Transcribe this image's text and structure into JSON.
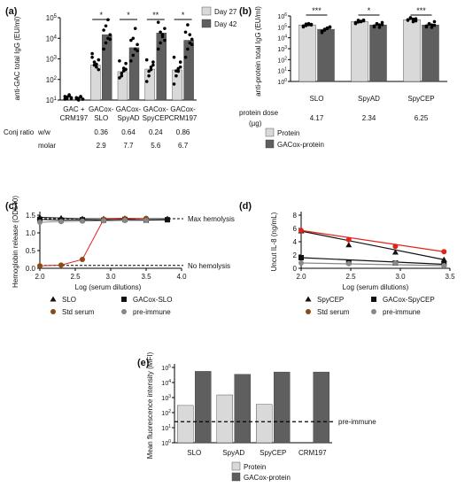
{
  "colors": {
    "light": "#d9d9d9",
    "dark": "#5f5f5f",
    "red": "#e2231a",
    "black": "#111111",
    "grey": "#888888",
    "brown": "#8b4a16"
  },
  "chart_data": [
    {
      "panel": "(a)",
      "type": "bar",
      "scale": "log",
      "ylabel": "anti-GAC total IgG (EU/ml)",
      "ylim_exponents": [
        1,
        5
      ],
      "ytick_exponents": [
        1,
        2,
        3,
        4,
        5
      ],
      "categories": [
        {
          "line1": "GAC +",
          "line2": "CRM197"
        },
        {
          "line1": "GACox-",
          "line2": "SLO"
        },
        {
          "line1": "GACox-",
          "line2": "SpyAD"
        },
        {
          "line1": "GACox-",
          "line2": "SpyCEP"
        },
        {
          "line1": "GACox-",
          "line2": "CRM197"
        }
      ],
      "series": [
        {
          "name": "Day 27",
          "values": [
            14,
            500,
            240,
            320,
            290
          ],
          "points": [
            [
              15,
              12,
              18,
              13,
              11,
              14,
              16,
              12
            ],
            [
              1800,
              700,
              400,
              300,
              1200,
              500,
              550,
              900
            ],
            [
              120,
              200,
              350,
              600,
              800,
              150,
              260,
              310
            ],
            [
              80,
              150,
              300,
              700,
              900,
              250,
              400,
              500
            ],
            [
              60,
              150,
              250,
              700,
              1200,
              260,
              340,
              400
            ]
          ]
        },
        {
          "name": "Day 42",
          "values": [
            12,
            15000,
            3500,
            18000,
            8000
          ],
          "points": [
            [
              12,
              10,
              14,
              11,
              13,
              12,
              15,
              11
            ],
            [
              3000,
              6000,
              10000,
              15000,
              25000,
              40000,
              80000,
              9000
            ],
            [
              800,
              1500,
              3000,
              5000,
              8000,
              10000,
              30000,
              2500
            ],
            [
              3000,
              6000,
              15000,
              30000,
              60000,
              20000,
              12000,
              8000
            ],
            [
              1200,
              3000,
              6000,
              9000,
              20000,
              45000,
              15000,
              5000
            ]
          ]
        }
      ],
      "significance": [
        "*",
        "*",
        "**",
        "*"
      ],
      "table": {
        "row1_label": "Conj ratio",
        "row2_label": "w/w",
        "row3_label": "molar",
        "ww": [
          "0.36",
          "0.64",
          "0.24",
          "0.86"
        ],
        "molar": [
          "2.9",
          "7.7",
          "5.6",
          "6.7"
        ]
      }
    },
    {
      "panel": "(b)",
      "type": "bar",
      "scale": "log",
      "ylabel": "anti-protein total IgG (EU/ml)",
      "ylim_exponents": [
        0,
        6
      ],
      "ytick_exponents": [
        0,
        1,
        2,
        3,
        4,
        5,
        6
      ],
      "categories": [
        "SLO",
        "SpyAD",
        "SpyCEP"
      ],
      "series": [
        {
          "name": "Protein",
          "values": [
            150000,
            300000,
            450000
          ],
          "points": [
            [
              120000,
              180000,
              200000,
              150000,
              100000,
              130000,
              160000,
              170000
            ],
            [
              250000,
              400000,
              300000,
              350000,
              200000,
              280000,
              320000,
              420000
            ],
            [
              400000,
              600000,
              500000,
              350000,
              450000,
              700000,
              300000,
              550000
            ]
          ]
        },
        {
          "name": "GACox-protein",
          "values": [
            60000,
            150000,
            150000
          ],
          "points": [
            [
              40000,
              60000,
              80000,
              90000,
              30000,
              50000,
              70000,
              100000
            ],
            [
              100000,
              200000,
              150000,
              250000,
              120000,
              180000,
              90000,
              160000
            ],
            [
              100000,
              200000,
              150000,
              300000,
              120000,
              180000,
              90000,
              140000
            ]
          ]
        }
      ],
      "significance": [
        "***",
        "*",
        "***"
      ],
      "dose_label": "protein dose",
      "dose_unit": "(µg)",
      "doses": [
        "4.17",
        "2.34",
        "6.25"
      ]
    },
    {
      "panel": "(c)",
      "type": "line",
      "xlabel": "Log (serum dilutions)",
      "ylabel": "Hemoglobin release (OD540)",
      "xlim": [
        2.0,
        4.0
      ],
      "ylim": [
        0.0,
        1.5
      ],
      "xticks": [
        "2.0",
        "2.5",
        "3.0",
        "3.5",
        "4.0"
      ],
      "yticks": [
        "0.0",
        "0.5",
        "1.0",
        "1.5"
      ],
      "max_line": 1.4,
      "min_line": 0.08,
      "annotations": [
        "Max hemolysis",
        "No hemolysis"
      ],
      "series": [
        {
          "name": "SLO",
          "x": [
            2.0,
            2.3,
            2.6,
            2.9,
            3.2,
            3.5,
            3.8
          ],
          "y": [
            1.44,
            1.42,
            1.4,
            1.4,
            1.41,
            1.4,
            1.4
          ]
        },
        {
          "name": "GACox-SLO",
          "x": [
            2.0,
            2.3,
            2.6,
            2.9,
            3.2,
            3.5,
            3.8
          ],
          "y": [
            1.38,
            1.36,
            1.37,
            1.36,
            1.38,
            1.36,
            1.37
          ]
        },
        {
          "name": "Std serum",
          "x": [
            2.0,
            2.3,
            2.6,
            2.9,
            3.2,
            3.5
          ],
          "y": [
            0.07,
            0.09,
            0.25,
            1.38,
            1.4,
            1.41
          ]
        },
        {
          "name": "pre-immune",
          "x": [
            2.0,
            2.3,
            2.6,
            2.9,
            3.2,
            3.5
          ],
          "y": [
            1.3,
            1.32,
            1.33,
            1.34,
            1.35,
            1.35
          ]
        }
      ]
    },
    {
      "panel": "(d)",
      "type": "line",
      "xlabel": "Log (serum dilutions)",
      "ylabel": "Uncut IL-8 (ng/mL)",
      "xlim": [
        2.0,
        3.5
      ],
      "ylim": [
        0,
        8
      ],
      "xticks": [
        "2.0",
        "2.5",
        "3.0",
        "3.5"
      ],
      "yticks": [
        "0",
        "2",
        "4",
        "6",
        "8"
      ],
      "series": [
        {
          "name": "SpyCEP",
          "x": [
            2.0,
            2.48,
            2.95,
            3.44
          ],
          "y": [
            5.6,
            3.5,
            2.4,
            1.3
          ]
        },
        {
          "name": "GACox-SpyCEP",
          "x": [
            2.0,
            2.48,
            2.95,
            3.44
          ],
          "y": [
            1.6,
            0.9,
            0.8,
            0.6
          ]
        },
        {
          "name": "Std serum",
          "x": [
            2.0,
            2.48,
            2.95,
            3.44
          ],
          "y": [
            5.7,
            4.3,
            3.3,
            2.5
          ]
        },
        {
          "name": "pre-immune",
          "x": [
            2.0,
            2.48,
            2.95,
            3.44
          ],
          "y": [
            0.8,
            0.7,
            0.8,
            0.4
          ]
        }
      ]
    },
    {
      "panel": "(e)",
      "type": "bar",
      "scale": "log",
      "ylabel": "Mean fluorescence intensity (MFI)",
      "ylim_exponents": [
        0,
        5
      ],
      "ytick_exponents": [
        0,
        1,
        2,
        3,
        4,
        5
      ],
      "categories": [
        "SLO",
        "SpyAD",
        "SpyCEP",
        "CRM197"
      ],
      "series": [
        {
          "name": "Protein",
          "values": [
            300,
            1500,
            350,
            null
          ]
        },
        {
          "name": "GACox-protein",
          "values": [
            55000,
            35000,
            50000,
            50000
          ]
        }
      ],
      "preimmune_level": 25,
      "preimmune_label": "pre-immune"
    }
  ]
}
